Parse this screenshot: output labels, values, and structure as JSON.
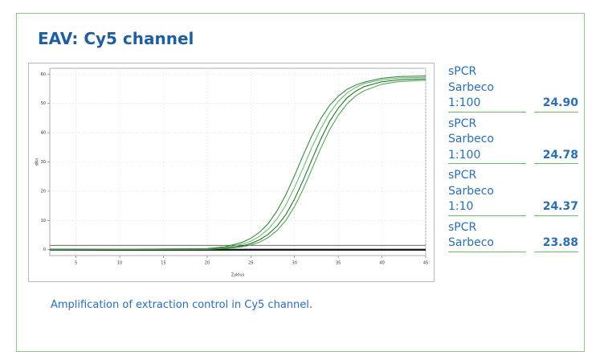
{
  "title": "EAV: Cy5 channel",
  "chart_data": {
    "type": "line",
    "xlabel": "Zyklus",
    "ylabel": "dRn",
    "x": [
      2,
      20,
      22,
      24,
      25,
      26,
      27,
      28,
      29,
      30,
      31,
      32,
      33,
      34,
      35,
      36,
      37,
      38,
      40,
      42,
      45
    ],
    "series": [
      {
        "color": "#2e7d32",
        "values": [
          0,
          0.4,
          1.0,
          2.5,
          3.9,
          6.0,
          9.0,
          13.3,
          18.8,
          25.3,
          32.4,
          39.1,
          44.8,
          49.3,
          52.5,
          54.8,
          56.3,
          57.3,
          58.6,
          59.2,
          59.4
        ]
      },
      {
        "color": "#5cb860",
        "values": [
          0,
          0.3,
          0.7,
          1.9,
          2.9,
          4.6,
          7.0,
          10.6,
          15.3,
          21.3,
          28.1,
          35.1,
          41.4,
          46.7,
          50.7,
          53.6,
          55.5,
          56.8,
          58.1,
          58.7,
          58.9
        ]
      },
      {
        "color": "#1b5e20",
        "values": [
          0,
          0.2,
          0.5,
          1.3,
          2.1,
          3.4,
          5.3,
          8.1,
          12.0,
          17.3,
          23.8,
          30.9,
          37.8,
          43.8,
          48.4,
          51.9,
          54.2,
          55.8,
          57.4,
          58.1,
          58.4
        ]
      },
      {
        "color": "#43a047",
        "values": [
          0,
          0.1,
          0.4,
          1.0,
          1.6,
          2.6,
          4.2,
          6.6,
          10.0,
          14.8,
          20.8,
          27.7,
          34.7,
          41.0,
          46.0,
          49.8,
          52.6,
          54.4,
          56.6,
          57.5,
          57.9
        ]
      }
    ],
    "threshold": 1.5,
    "xlim": [
      2,
      45
    ],
    "xticks": [
      5,
      10,
      15,
      20,
      25,
      30,
      35,
      40,
      45
    ],
    "ylim": [
      -2,
      62
    ],
    "yticks": [
      0,
      10,
      20,
      30,
      40,
      50,
      60
    ],
    "grid": true
  },
  "table": {
    "rows": [
      {
        "label": [
          "sPCR",
          "Sarbeco",
          "1:100"
        ],
        "value": "24.90"
      },
      {
        "label": [
          "sPCR",
          "Sarbeco",
          "1:100"
        ],
        "value": "24.78"
      },
      {
        "label": [
          "sPCR",
          "Sarbeco",
          "1:10"
        ],
        "value": "24.37"
      },
      {
        "label": [
          "sPCR",
          "Sarbeco"
        ],
        "value": "23.88"
      }
    ]
  },
  "caption": "Amplification of extraction control in Cy5 channel."
}
